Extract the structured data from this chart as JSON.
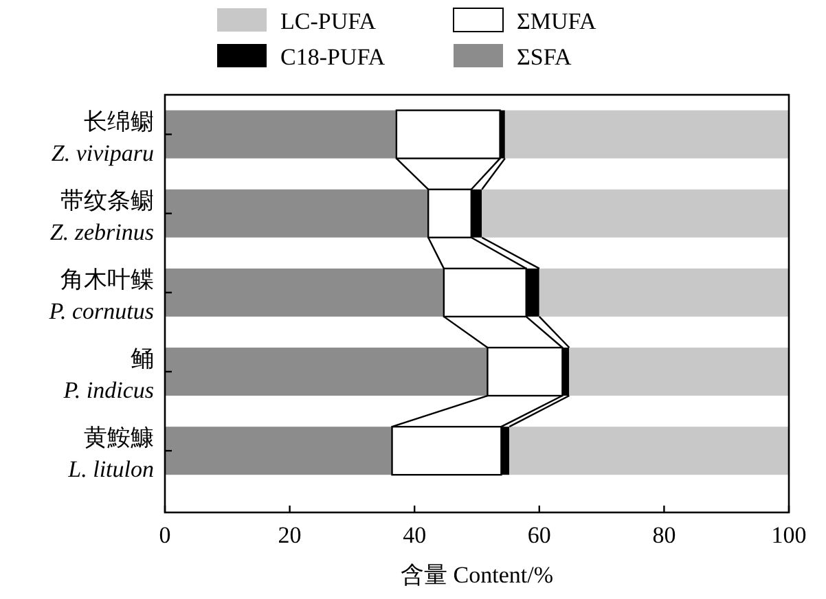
{
  "chart_data": {
    "type": "bar",
    "orientation": "horizontal",
    "stacked": true,
    "categories": [
      "长绵鳚\nZ. viviparu",
      "带纹条鳚\nZ. zebrinus",
      "角木叶鲽\nP. cornutus",
      "鲬\nP. indicus",
      "黄鮟鱇\nL. litulon"
    ],
    "series": [
      {
        "name": "ΣSFA",
        "color": "#8c8c8c",
        "values": [
          37.1,
          42.2,
          44.7,
          51.7,
          36.4
        ]
      },
      {
        "name": "ΣMUFA",
        "color": "#ffffff",
        "values": [
          16.6,
          6.9,
          13.2,
          12.0,
          17.5
        ]
      },
      {
        "name": "C18-PUFA",
        "color": "#000000",
        "values": [
          0.8,
          1.7,
          2.1,
          1.1,
          1.3
        ]
      },
      {
        "name": "LC-PUFA",
        "color": "#c8c8c8",
        "values": [
          45.5,
          49.2,
          40.0,
          35.2,
          44.8
        ]
      }
    ],
    "xlim": [
      0,
      100
    ],
    "xticks": [
      0,
      20,
      40,
      60,
      80,
      100
    ],
    "xlabel": "含量 Content/%",
    "legend": "top",
    "grid": false
  }
}
